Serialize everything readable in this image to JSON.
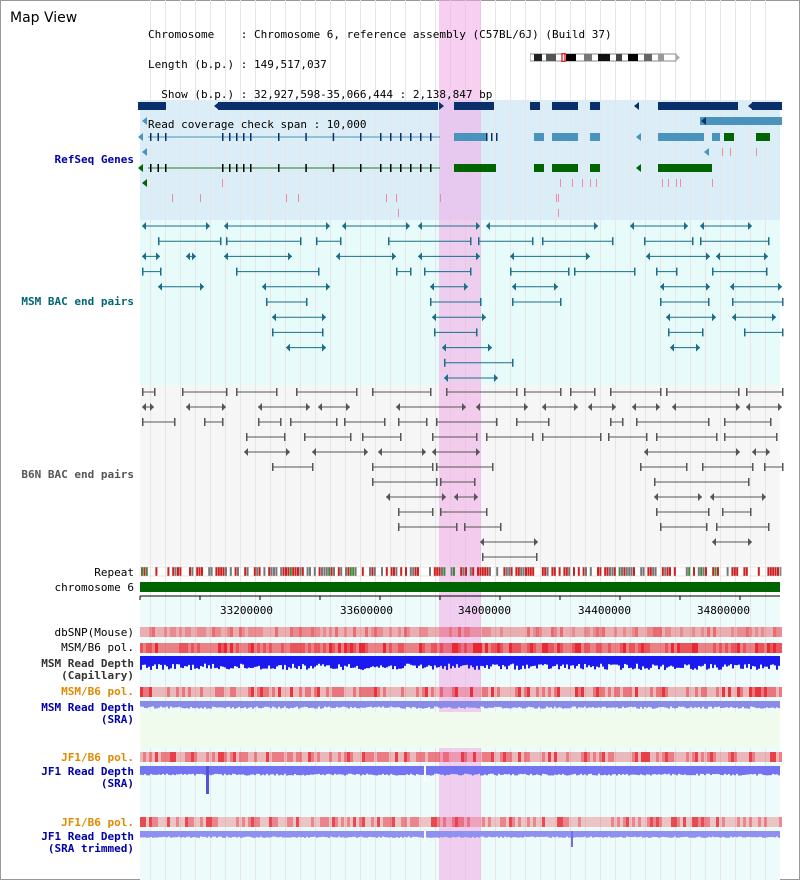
{
  "header": {
    "title": "Map View",
    "info_lines": [
      "Chromosome    : Chromosome 6, reference assembly (C57BL/6J) (Build 37)",
      "Length (b.p.) : 149,517,037",
      "  Show (b.p.) : 32,927,598-35,066,444 : 2,138,847 bp",
      "Read coverage check span : 10,000"
    ]
  },
  "tracks": {
    "refseq": "RefSeq Genes",
    "msm_bac": "MSM BAC end pairs",
    "b6n_bac": "B6N BAC end pairs",
    "repeat": "Repeat",
    "chromosome": "chromosome 6",
    "dbsnp": "dbSNP(Mouse)",
    "msm_b6_pol_1": "MSM/B6 pol.",
    "msm_read_depth_cap": "MSM Read Depth\n(Capillary)",
    "msm_b6_pol_2": "MSM/B6 pol.",
    "msm_read_depth_sra": "MSM Read Depth\n(SRA)",
    "jf1_b6_pol_1": "JF1/B6 pol.",
    "jf1_read_depth_sra": "JF1 Read Depth\n(SRA)",
    "jf1_b6_pol_2": "JF1/B6 pol.",
    "jf1_read_depth_trim": "JF1 Read Depth\n(SRA trimmed)"
  },
  "axis_ticks": [
    "33200000",
    "33600000",
    "34000000",
    "34400000",
    "34800000"
  ],
  "colors": {
    "refseq_bg": "#dbeef8",
    "msm_bg": "#e8fbfb",
    "b6n_bg": "#f4f4f4",
    "gene_dark": "#0b2f6b",
    "gene_mid": "#4a93bd",
    "gene_green": "#006400",
    "bac_msm": "#1a6e8a",
    "bac_b6n": "#555555",
    "highlight": "#f0aae6",
    "label_blue": "#0000aa",
    "label_teal": "#006677",
    "label_orange": "#e08a00"
  }
}
